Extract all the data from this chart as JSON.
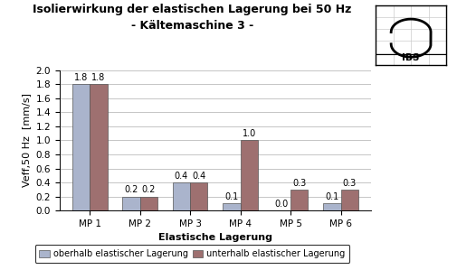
{
  "title_line1": "Isolierwirkung der elastischen Lagerung bei 50 Hz",
  "title_line2": "- Kältemaschine 3 -",
  "xlabel": "Elastische Lagerung",
  "ylabel": "Veff,50 Hz  [mm/s]",
  "categories": [
    "MP 1",
    "MP 2",
    "MP 3",
    "MP 4",
    "MP 5",
    "MP 6"
  ],
  "series1_label": "oberhalb elastischer Lagerung",
  "series2_label": "unterhalb elastischer Lagerung",
  "series1_values": [
    1.8,
    0.2,
    0.4,
    0.1,
    0.0,
    0.1
  ],
  "series2_values": [
    1.8,
    0.2,
    0.4,
    1.0,
    0.3,
    0.3
  ],
  "series1_color": "#aab4cc",
  "series2_color": "#9e7070",
  "ylim": [
    0.0,
    2.0
  ],
  "yticks": [
    0.0,
    0.2,
    0.4,
    0.6,
    0.8,
    1.0,
    1.2,
    1.4,
    1.6,
    1.8,
    2.0
  ],
  "bar_width": 0.35,
  "grid_color": "#bbbbbb",
  "bg_color": "#ffffff",
  "title_fontsize": 9,
  "label_fontsize": 8,
  "tick_fontsize": 7.5,
  "annotation_fontsize": 7,
  "legend_fontsize": 7
}
